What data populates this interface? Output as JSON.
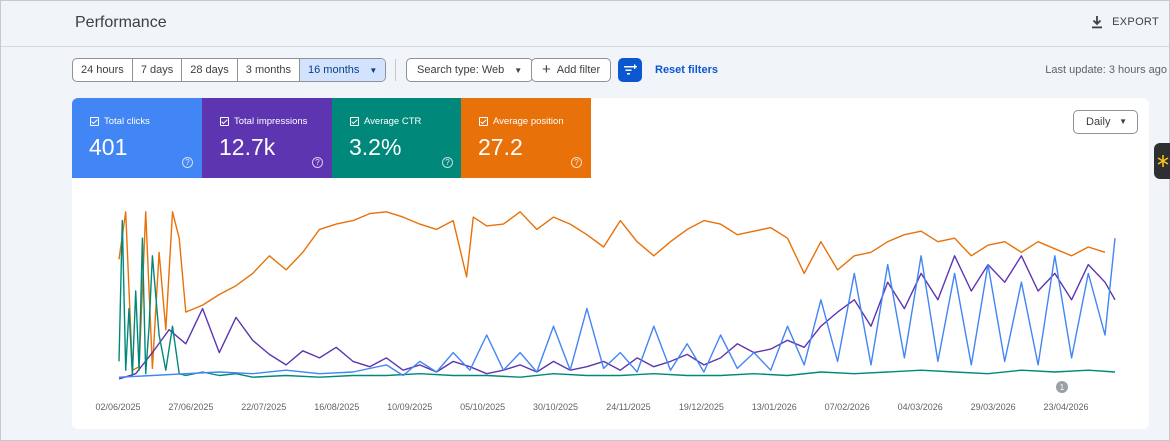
{
  "header": {
    "title": "Performance",
    "export_label": "EXPORT"
  },
  "date_range": {
    "options": [
      "24 hours",
      "7 days",
      "28 days",
      "3 months",
      "16 months"
    ],
    "selected": "16 months"
  },
  "filters": {
    "search_type": "Search type: Web",
    "add_filter": "Add filter",
    "reset": "Reset filters",
    "last_update": "Last update: 3 hours ago"
  },
  "metrics": [
    {
      "label": "Total clicks",
      "value": "401",
      "color": "#4285f4"
    },
    {
      "label": "Total impressions",
      "value": "12.7k",
      "color": "#5e35b1"
    },
    {
      "label": "Average CTR",
      "value": "3.2%",
      "color": "#00897b"
    },
    {
      "label": "Average position",
      "value": "27.2",
      "color": "#e8710a"
    }
  ],
  "granularity": {
    "selected": "Daily"
  },
  "annotation_marker": "1",
  "chart_data": {
    "type": "line",
    "x_ticks": [
      "02/06/2025",
      "27/06/2025",
      "22/07/2025",
      "16/08/2025",
      "10/09/2025",
      "05/10/2025",
      "30/10/2025",
      "24/11/2025",
      "19/12/2025",
      "13/01/2026",
      "07/02/2026",
      "04/03/2026",
      "29/03/2026",
      "23/04/2026"
    ],
    "series": [
      {
        "key": "position",
        "color": "#e8710a",
        "points": [
          [
            0,
            0.32
          ],
          [
            2,
            0.05
          ],
          [
            4,
            0.95
          ],
          [
            6,
            0.93
          ],
          [
            8,
            0.05
          ],
          [
            10,
            0.94
          ],
          [
            12,
            0.28
          ],
          [
            14,
            0.72
          ],
          [
            16,
            0.05
          ],
          [
            18,
            0.2
          ],
          [
            20,
            0.62
          ],
          [
            25,
            0.58
          ],
          [
            30,
            0.52
          ],
          [
            35,
            0.47
          ],
          [
            40,
            0.4
          ],
          [
            45,
            0.3
          ],
          [
            50,
            0.38
          ],
          [
            55,
            0.28
          ],
          [
            60,
            0.15
          ],
          [
            65,
            0.12
          ],
          [
            70,
            0.1
          ],
          [
            75,
            0.06
          ],
          [
            80,
            0.05
          ],
          [
            85,
            0.08
          ],
          [
            90,
            0.12
          ],
          [
            95,
            0.15
          ],
          [
            100,
            0.1
          ],
          [
            104,
            0.42
          ],
          [
            106,
            0.08
          ],
          [
            110,
            0.13
          ],
          [
            115,
            0.12
          ],
          [
            120,
            0.05
          ],
          [
            125,
            0.15
          ],
          [
            130,
            0.08
          ],
          [
            135,
            0.12
          ],
          [
            140,
            0.18
          ],
          [
            145,
            0.25
          ],
          [
            150,
            0.1
          ],
          [
            155,
            0.22
          ],
          [
            160,
            0.3
          ],
          [
            165,
            0.22
          ],
          [
            170,
            0.15
          ],
          [
            175,
            0.1
          ],
          [
            180,
            0.12
          ],
          [
            185,
            0.18
          ],
          [
            190,
            0.16
          ],
          [
            195,
            0.14
          ],
          [
            200,
            0.2
          ],
          [
            205,
            0.4
          ],
          [
            210,
            0.22
          ],
          [
            215,
            0.38
          ],
          [
            220,
            0.3
          ],
          [
            225,
            0.28
          ],
          [
            230,
            0.22
          ],
          [
            235,
            0.18
          ],
          [
            240,
            0.16
          ],
          [
            245,
            0.22
          ],
          [
            250,
            0.2
          ],
          [
            255,
            0.3
          ],
          [
            260,
            0.24
          ],
          [
            265,
            0.22
          ],
          [
            270,
            0.28
          ],
          [
            275,
            0.22
          ],
          [
            280,
            0.26
          ],
          [
            285,
            0.3
          ],
          [
            290,
            0.25
          ],
          [
            295,
            0.28
          ]
        ]
      },
      {
        "key": "impressions",
        "color": "#5e35b1",
        "points": [
          [
            0,
            1.0
          ],
          [
            5,
            0.97
          ],
          [
            10,
            0.85
          ],
          [
            15,
            0.72
          ],
          [
            20,
            0.8
          ],
          [
            25,
            0.6
          ],
          [
            30,
            0.85
          ],
          [
            35,
            0.65
          ],
          [
            40,
            0.78
          ],
          [
            45,
            0.86
          ],
          [
            50,
            0.92
          ],
          [
            55,
            0.84
          ],
          [
            60,
            0.88
          ],
          [
            65,
            0.82
          ],
          [
            70,
            0.9
          ],
          [
            75,
            0.93
          ],
          [
            80,
            0.88
          ],
          [
            85,
            0.95
          ],
          [
            90,
            0.92
          ],
          [
            95,
            0.96
          ],
          [
            100,
            0.9
          ],
          [
            105,
            0.93
          ],
          [
            110,
            0.97
          ],
          [
            115,
            0.95
          ],
          [
            120,
            0.92
          ],
          [
            125,
            0.96
          ],
          [
            130,
            0.9
          ],
          [
            135,
            0.95
          ],
          [
            140,
            0.93
          ],
          [
            145,
            0.9
          ],
          [
            150,
            0.95
          ],
          [
            155,
            0.88
          ],
          [
            160,
            0.93
          ],
          [
            165,
            0.9
          ],
          [
            170,
            0.86
          ],
          [
            175,
            0.92
          ],
          [
            180,
            0.88
          ],
          [
            185,
            0.8
          ],
          [
            190,
            0.85
          ],
          [
            195,
            0.83
          ],
          [
            200,
            0.78
          ],
          [
            205,
            0.82
          ],
          [
            210,
            0.7
          ],
          [
            215,
            0.62
          ],
          [
            220,
            0.55
          ],
          [
            225,
            0.7
          ],
          [
            230,
            0.45
          ],
          [
            235,
            0.6
          ],
          [
            240,
            0.4
          ],
          [
            245,
            0.55
          ],
          [
            250,
            0.3
          ],
          [
            255,
            0.5
          ],
          [
            260,
            0.35
          ],
          [
            265,
            0.45
          ],
          [
            270,
            0.3
          ],
          [
            275,
            0.5
          ],
          [
            280,
            0.4
          ],
          [
            285,
            0.55
          ],
          [
            290,
            0.35
          ],
          [
            295,
            0.45
          ],
          [
            298,
            0.55
          ]
        ]
      },
      {
        "key": "ctr",
        "color": "#00897b",
        "points": [
          [
            0,
            0.9
          ],
          [
            1,
            0.1
          ],
          [
            2,
            0.95
          ],
          [
            3,
            0.6
          ],
          [
            4,
            0.98
          ],
          [
            5,
            0.5
          ],
          [
            6,
            0.95
          ],
          [
            7,
            0.2
          ],
          [
            8,
            0.97
          ],
          [
            9,
            0.7
          ],
          [
            10,
            0.3
          ],
          [
            12,
            0.75
          ],
          [
            14,
            0.95
          ],
          [
            16,
            0.7
          ],
          [
            18,
            0.97
          ],
          [
            20,
            0.98
          ],
          [
            25,
            0.96
          ],
          [
            30,
            0.98
          ],
          [
            35,
            0.97
          ],
          [
            40,
            0.99
          ],
          [
            50,
            0.98
          ],
          [
            60,
            0.99
          ],
          [
            70,
            0.98
          ],
          [
            80,
            0.98
          ],
          [
            90,
            0.97
          ],
          [
            100,
            0.98
          ],
          [
            110,
            0.98
          ],
          [
            120,
            0.99
          ],
          [
            130,
            0.97
          ],
          [
            140,
            0.98
          ],
          [
            150,
            0.98
          ],
          [
            160,
            0.97
          ],
          [
            170,
            0.98
          ],
          [
            180,
            0.98
          ],
          [
            190,
            0.97
          ],
          [
            200,
            0.98
          ],
          [
            210,
            0.96
          ],
          [
            220,
            0.97
          ],
          [
            230,
            0.96
          ],
          [
            240,
            0.95
          ],
          [
            250,
            0.96
          ],
          [
            260,
            0.97
          ],
          [
            270,
            0.95
          ],
          [
            280,
            0.96
          ],
          [
            290,
            0.95
          ],
          [
            298,
            0.96
          ]
        ]
      },
      {
        "key": "clicks",
        "color": "#4285f4",
        "points": [
          [
            0,
            0.99
          ],
          [
            10,
            0.98
          ],
          [
            20,
            0.97
          ],
          [
            30,
            0.96
          ],
          [
            40,
            0.97
          ],
          [
            50,
            0.95
          ],
          [
            60,
            0.97
          ],
          [
            70,
            0.96
          ],
          [
            80,
            0.92
          ],
          [
            85,
            0.98
          ],
          [
            90,
            0.9
          ],
          [
            95,
            0.96
          ],
          [
            100,
            0.85
          ],
          [
            105,
            0.95
          ],
          [
            110,
            0.75
          ],
          [
            115,
            0.95
          ],
          [
            120,
            0.85
          ],
          [
            125,
            0.96
          ],
          [
            130,
            0.7
          ],
          [
            135,
            0.95
          ],
          [
            140,
            0.6
          ],
          [
            145,
            0.94
          ],
          [
            150,
            0.85
          ],
          [
            155,
            0.96
          ],
          [
            160,
            0.7
          ],
          [
            165,
            0.95
          ],
          [
            170,
            0.8
          ],
          [
            175,
            0.96
          ],
          [
            180,
            0.75
          ],
          [
            185,
            0.94
          ],
          [
            190,
            0.85
          ],
          [
            195,
            0.95
          ],
          [
            200,
            0.7
          ],
          [
            205,
            0.92
          ],
          [
            210,
            0.55
          ],
          [
            215,
            0.9
          ],
          [
            220,
            0.4
          ],
          [
            225,
            0.92
          ],
          [
            230,
            0.35
          ],
          [
            235,
            0.88
          ],
          [
            240,
            0.3
          ],
          [
            245,
            0.9
          ],
          [
            250,
            0.4
          ],
          [
            255,
            0.92
          ],
          [
            260,
            0.35
          ],
          [
            265,
            0.9
          ],
          [
            270,
            0.45
          ],
          [
            275,
            0.92
          ],
          [
            280,
            0.3
          ],
          [
            285,
            0.88
          ],
          [
            290,
            0.4
          ],
          [
            295,
            0.75
          ],
          [
            298,
            0.2
          ]
        ]
      }
    ]
  }
}
